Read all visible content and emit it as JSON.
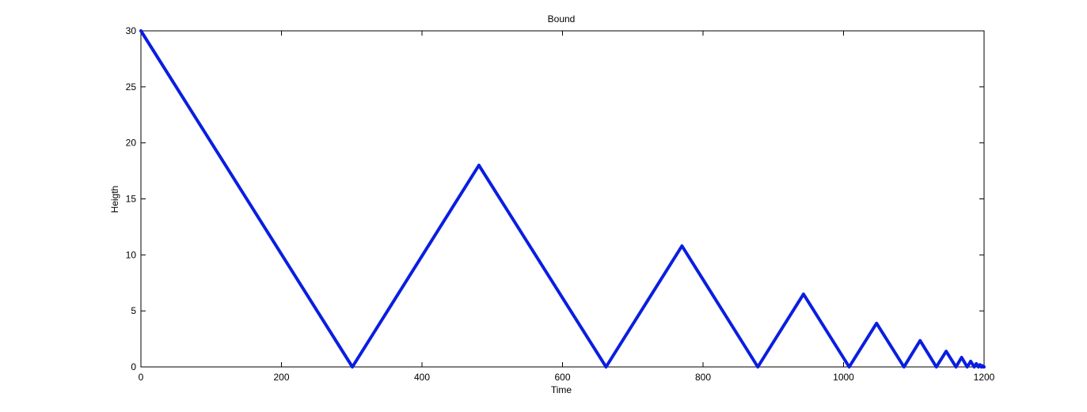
{
  "chart_data": {
    "type": "line",
    "title": "Bound",
    "xlabel": "Time",
    "ylabel": "Heigth",
    "xlim": [
      0,
      1200
    ],
    "ylim": [
      0,
      30
    ],
    "xticks": [
      0,
      200,
      400,
      600,
      800,
      1000,
      1200
    ],
    "yticks": [
      0,
      5,
      10,
      15,
      20,
      25,
      30
    ],
    "xtick_labels": [
      "0",
      "200",
      "400",
      "600",
      "800",
      "1000",
      "1200"
    ],
    "ytick_labels": [
      "0",
      "5",
      "10",
      "15",
      "20",
      "25",
      "30"
    ],
    "grid": false,
    "series": [
      {
        "color": "#0a1ee0",
        "x": [
          0,
          301,
          481,
          662,
          770,
          878,
          943,
          1008,
          1047,
          1086,
          1109,
          1132,
          1146,
          1160,
          1168,
          1176,
          1181,
          1186,
          1189,
          1192,
          1194,
          1196,
          1197,
          1198,
          1199,
          1200
        ],
        "y": [
          30,
          0,
          18,
          0,
          10.8,
          0,
          6.5,
          0,
          3.9,
          0,
          2.35,
          0,
          1.4,
          0,
          0.85,
          0,
          0.5,
          0,
          0.3,
          0,
          0.2,
          0,
          0.12,
          0,
          0.07,
          0
        ]
      }
    ]
  }
}
